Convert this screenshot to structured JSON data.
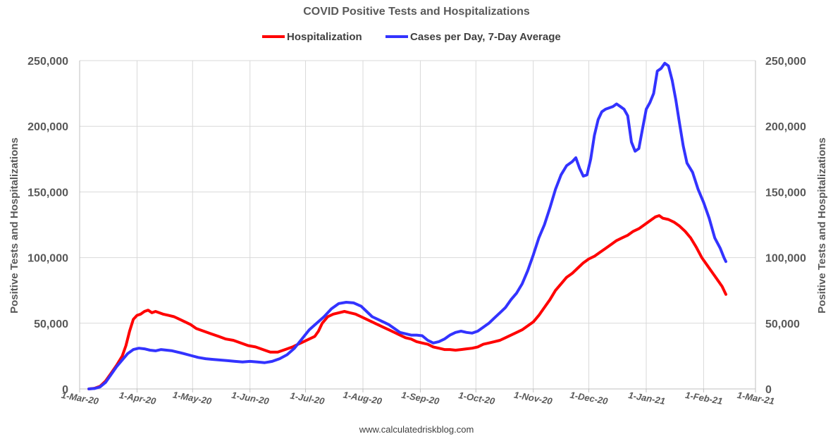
{
  "chart_data": {
    "type": "line",
    "title": "COVID Positive Tests and Hospitalizations",
    "ylabel_left": "Positive Tests and Hospitalizations",
    "ylabel_right": "Positive Tests and Hospitalizations",
    "credit": "www.calculatedriskblog.com",
    "ylim": [
      0,
      250000
    ],
    "xlim_days": [
      0,
      365
    ],
    "y_ticks": [
      {
        "value": 0,
        "label": "0"
      },
      {
        "value": 50000,
        "label": "50,000"
      },
      {
        "value": 100000,
        "label": "100,000"
      },
      {
        "value": 150000,
        "label": "150,000"
      },
      {
        "value": 200000,
        "label": "200,000"
      },
      {
        "value": 250000,
        "label": "250,000"
      }
    ],
    "x_ticks": [
      {
        "day": 0,
        "label": "1-Mar-20"
      },
      {
        "day": 31,
        "label": "1-Apr-20"
      },
      {
        "day": 61,
        "label": "1-May-20"
      },
      {
        "day": 92,
        "label": "1-Jun-20"
      },
      {
        "day": 122,
        "label": "1-Jul-20"
      },
      {
        "day": 153,
        "label": "1-Aug-20"
      },
      {
        "day": 184,
        "label": "1-Sep-20"
      },
      {
        "day": 214,
        "label": "1-Oct-20"
      },
      {
        "day": 245,
        "label": "1-Nov-20"
      },
      {
        "day": 275,
        "label": "1-Dec-20"
      },
      {
        "day": 306,
        "label": "1-Jan-21"
      },
      {
        "day": 337,
        "label": "1-Feb-21"
      },
      {
        "day": 365,
        "label": "1-Mar-21"
      }
    ],
    "grid": true,
    "legend_position": "top-center",
    "series": [
      {
        "name": "Hospitalization",
        "color": "#ff0000",
        "points": [
          [
            5,
            0
          ],
          [
            8,
            500
          ],
          [
            11,
            2000
          ],
          [
            14,
            6000
          ],
          [
            17,
            12000
          ],
          [
            20,
            18000
          ],
          [
            23,
            25000
          ],
          [
            25,
            33000
          ],
          [
            27,
            44000
          ],
          [
            29,
            53000
          ],
          [
            31,
            56000
          ],
          [
            33,
            57000
          ],
          [
            35,
            59000
          ],
          [
            37,
            60000
          ],
          [
            39,
            58000
          ],
          [
            41,
            59000
          ],
          [
            43,
            58000
          ],
          [
            45,
            57000
          ],
          [
            48,
            56000
          ],
          [
            51,
            55000
          ],
          [
            54,
            53000
          ],
          [
            57,
            51000
          ],
          [
            60,
            49000
          ],
          [
            63,
            46000
          ],
          [
            67,
            44000
          ],
          [
            71,
            42000
          ],
          [
            75,
            40000
          ],
          [
            79,
            38000
          ],
          [
            83,
            37000
          ],
          [
            87,
            35000
          ],
          [
            91,
            33000
          ],
          [
            95,
            32000
          ],
          [
            99,
            30000
          ],
          [
            103,
            28000
          ],
          [
            107,
            28000
          ],
          [
            111,
            30000
          ],
          [
            115,
            32000
          ],
          [
            118,
            34000
          ],
          [
            121,
            36000
          ],
          [
            124,
            38000
          ],
          [
            127,
            40000
          ],
          [
            129,
            44000
          ],
          [
            131,
            50000
          ],
          [
            134,
            55000
          ],
          [
            137,
            57000
          ],
          [
            140,
            58000
          ],
          [
            143,
            59000
          ],
          [
            146,
            58000
          ],
          [
            149,
            57000
          ],
          [
            152,
            55000
          ],
          [
            155,
            53000
          ],
          [
            158,
            51000
          ],
          [
            161,
            49000
          ],
          [
            164,
            47000
          ],
          [
            167,
            45000
          ],
          [
            170,
            43000
          ],
          [
            173,
            41000
          ],
          [
            176,
            39000
          ],
          [
            179,
            38000
          ],
          [
            182,
            36000
          ],
          [
            185,
            35000
          ],
          [
            188,
            34000
          ],
          [
            191,
            32000
          ],
          [
            194,
            31000
          ],
          [
            197,
            30000
          ],
          [
            200,
            30000
          ],
          [
            203,
            29500
          ],
          [
            206,
            30000
          ],
          [
            209,
            30500
          ],
          [
            212,
            31000
          ],
          [
            215,
            32000
          ],
          [
            218,
            34000
          ],
          [
            221,
            35000
          ],
          [
            224,
            36000
          ],
          [
            227,
            37000
          ],
          [
            230,
            39000
          ],
          [
            233,
            41000
          ],
          [
            236,
            43000
          ],
          [
            239,
            45000
          ],
          [
            242,
            48000
          ],
          [
            245,
            51000
          ],
          [
            248,
            56000
          ],
          [
            251,
            62000
          ],
          [
            254,
            68000
          ],
          [
            257,
            75000
          ],
          [
            260,
            80000
          ],
          [
            263,
            85000
          ],
          [
            266,
            88000
          ],
          [
            269,
            92000
          ],
          [
            272,
            96000
          ],
          [
            275,
            99000
          ],
          [
            278,
            101000
          ],
          [
            281,
            104000
          ],
          [
            284,
            107000
          ],
          [
            287,
            110000
          ],
          [
            290,
            113000
          ],
          [
            293,
            115000
          ],
          [
            296,
            117000
          ],
          [
            299,
            120000
          ],
          [
            302,
            122000
          ],
          [
            305,
            125000
          ],
          [
            308,
            128000
          ],
          [
            311,
            131000
          ],
          [
            313,
            132000
          ],
          [
            315,
            130000
          ],
          [
            318,
            129000
          ],
          [
            321,
            127000
          ],
          [
            324,
            124000
          ],
          [
            327,
            120000
          ],
          [
            330,
            115000
          ],
          [
            333,
            108000
          ],
          [
            336,
            100000
          ],
          [
            339,
            94000
          ],
          [
            342,
            88000
          ],
          [
            345,
            82000
          ],
          [
            347,
            78000
          ],
          [
            349,
            72000
          ]
        ]
      },
      {
        "name": "Cases per Day, 7-Day Average",
        "color": "#3333ff",
        "points": [
          [
            5,
            0
          ],
          [
            8,
            300
          ],
          [
            11,
            1500
          ],
          [
            14,
            5000
          ],
          [
            17,
            11000
          ],
          [
            20,
            17000
          ],
          [
            23,
            22000
          ],
          [
            26,
            27000
          ],
          [
            29,
            30000
          ],
          [
            32,
            31000
          ],
          [
            35,
            30500
          ],
          [
            38,
            29500
          ],
          [
            41,
            29000
          ],
          [
            44,
            30000
          ],
          [
            47,
            29500
          ],
          [
            50,
            29000
          ],
          [
            53,
            28000
          ],
          [
            56,
            27000
          ],
          [
            60,
            25500
          ],
          [
            64,
            24000
          ],
          [
            68,
            23000
          ],
          [
            72,
            22500
          ],
          [
            76,
            22000
          ],
          [
            80,
            21500
          ],
          [
            84,
            21000
          ],
          [
            88,
            20500
          ],
          [
            92,
            21000
          ],
          [
            96,
            20500
          ],
          [
            100,
            20000
          ],
          [
            104,
            21000
          ],
          [
            108,
            23000
          ],
          [
            112,
            26000
          ],
          [
            116,
            31000
          ],
          [
            120,
            38000
          ],
          [
            124,
            45000
          ],
          [
            128,
            50000
          ],
          [
            132,
            55000
          ],
          [
            136,
            61000
          ],
          [
            140,
            65000
          ],
          [
            144,
            66000
          ],
          [
            148,
            65500
          ],
          [
            152,
            63000
          ],
          [
            155,
            59000
          ],
          [
            158,
            55000
          ],
          [
            161,
            53000
          ],
          [
            164,
            51000
          ],
          [
            167,
            49000
          ],
          [
            170,
            46000
          ],
          [
            173,
            43000
          ],
          [
            176,
            42000
          ],
          [
            179,
            41000
          ],
          [
            182,
            41000
          ],
          [
            185,
            40500
          ],
          [
            188,
            37000
          ],
          [
            191,
            35000
          ],
          [
            194,
            36000
          ],
          [
            197,
            38000
          ],
          [
            200,
            41000
          ],
          [
            203,
            43000
          ],
          [
            206,
            44000
          ],
          [
            209,
            43000
          ],
          [
            212,
            42500
          ],
          [
            215,
            44000
          ],
          [
            218,
            47000
          ],
          [
            221,
            50000
          ],
          [
            224,
            54000
          ],
          [
            227,
            58000
          ],
          [
            230,
            62000
          ],
          [
            233,
            68000
          ],
          [
            236,
            73000
          ],
          [
            239,
            80000
          ],
          [
            242,
            90000
          ],
          [
            245,
            102000
          ],
          [
            248,
            115000
          ],
          [
            251,
            125000
          ],
          [
            254,
            138000
          ],
          [
            257,
            152000
          ],
          [
            260,
            163000
          ],
          [
            263,
            170000
          ],
          [
            266,
            173000
          ],
          [
            268,
            176000
          ],
          [
            270,
            168000
          ],
          [
            272,
            162000
          ],
          [
            274,
            163000
          ],
          [
            276,
            175000
          ],
          [
            278,
            193000
          ],
          [
            280,
            205000
          ],
          [
            282,
            211000
          ],
          [
            284,
            213000
          ],
          [
            286,
            214000
          ],
          [
            288,
            215000
          ],
          [
            290,
            217000
          ],
          [
            292,
            215000
          ],
          [
            294,
            213000
          ],
          [
            296,
            208000
          ],
          [
            298,
            188000
          ],
          [
            300,
            181000
          ],
          [
            302,
            183000
          ],
          [
            304,
            198000
          ],
          [
            306,
            213000
          ],
          [
            308,
            218000
          ],
          [
            310,
            225000
          ],
          [
            312,
            242000
          ],
          [
            314,
            244000
          ],
          [
            316,
            248000
          ],
          [
            318,
            246000
          ],
          [
            320,
            235000
          ],
          [
            322,
            220000
          ],
          [
            324,
            202000
          ],
          [
            326,
            185000
          ],
          [
            328,
            172000
          ],
          [
            331,
            165000
          ],
          [
            334,
            152000
          ],
          [
            337,
            142000
          ],
          [
            340,
            130000
          ],
          [
            343,
            115000
          ],
          [
            346,
            107000
          ],
          [
            348,
            100000
          ],
          [
            349,
            97000
          ]
        ]
      }
    ]
  }
}
